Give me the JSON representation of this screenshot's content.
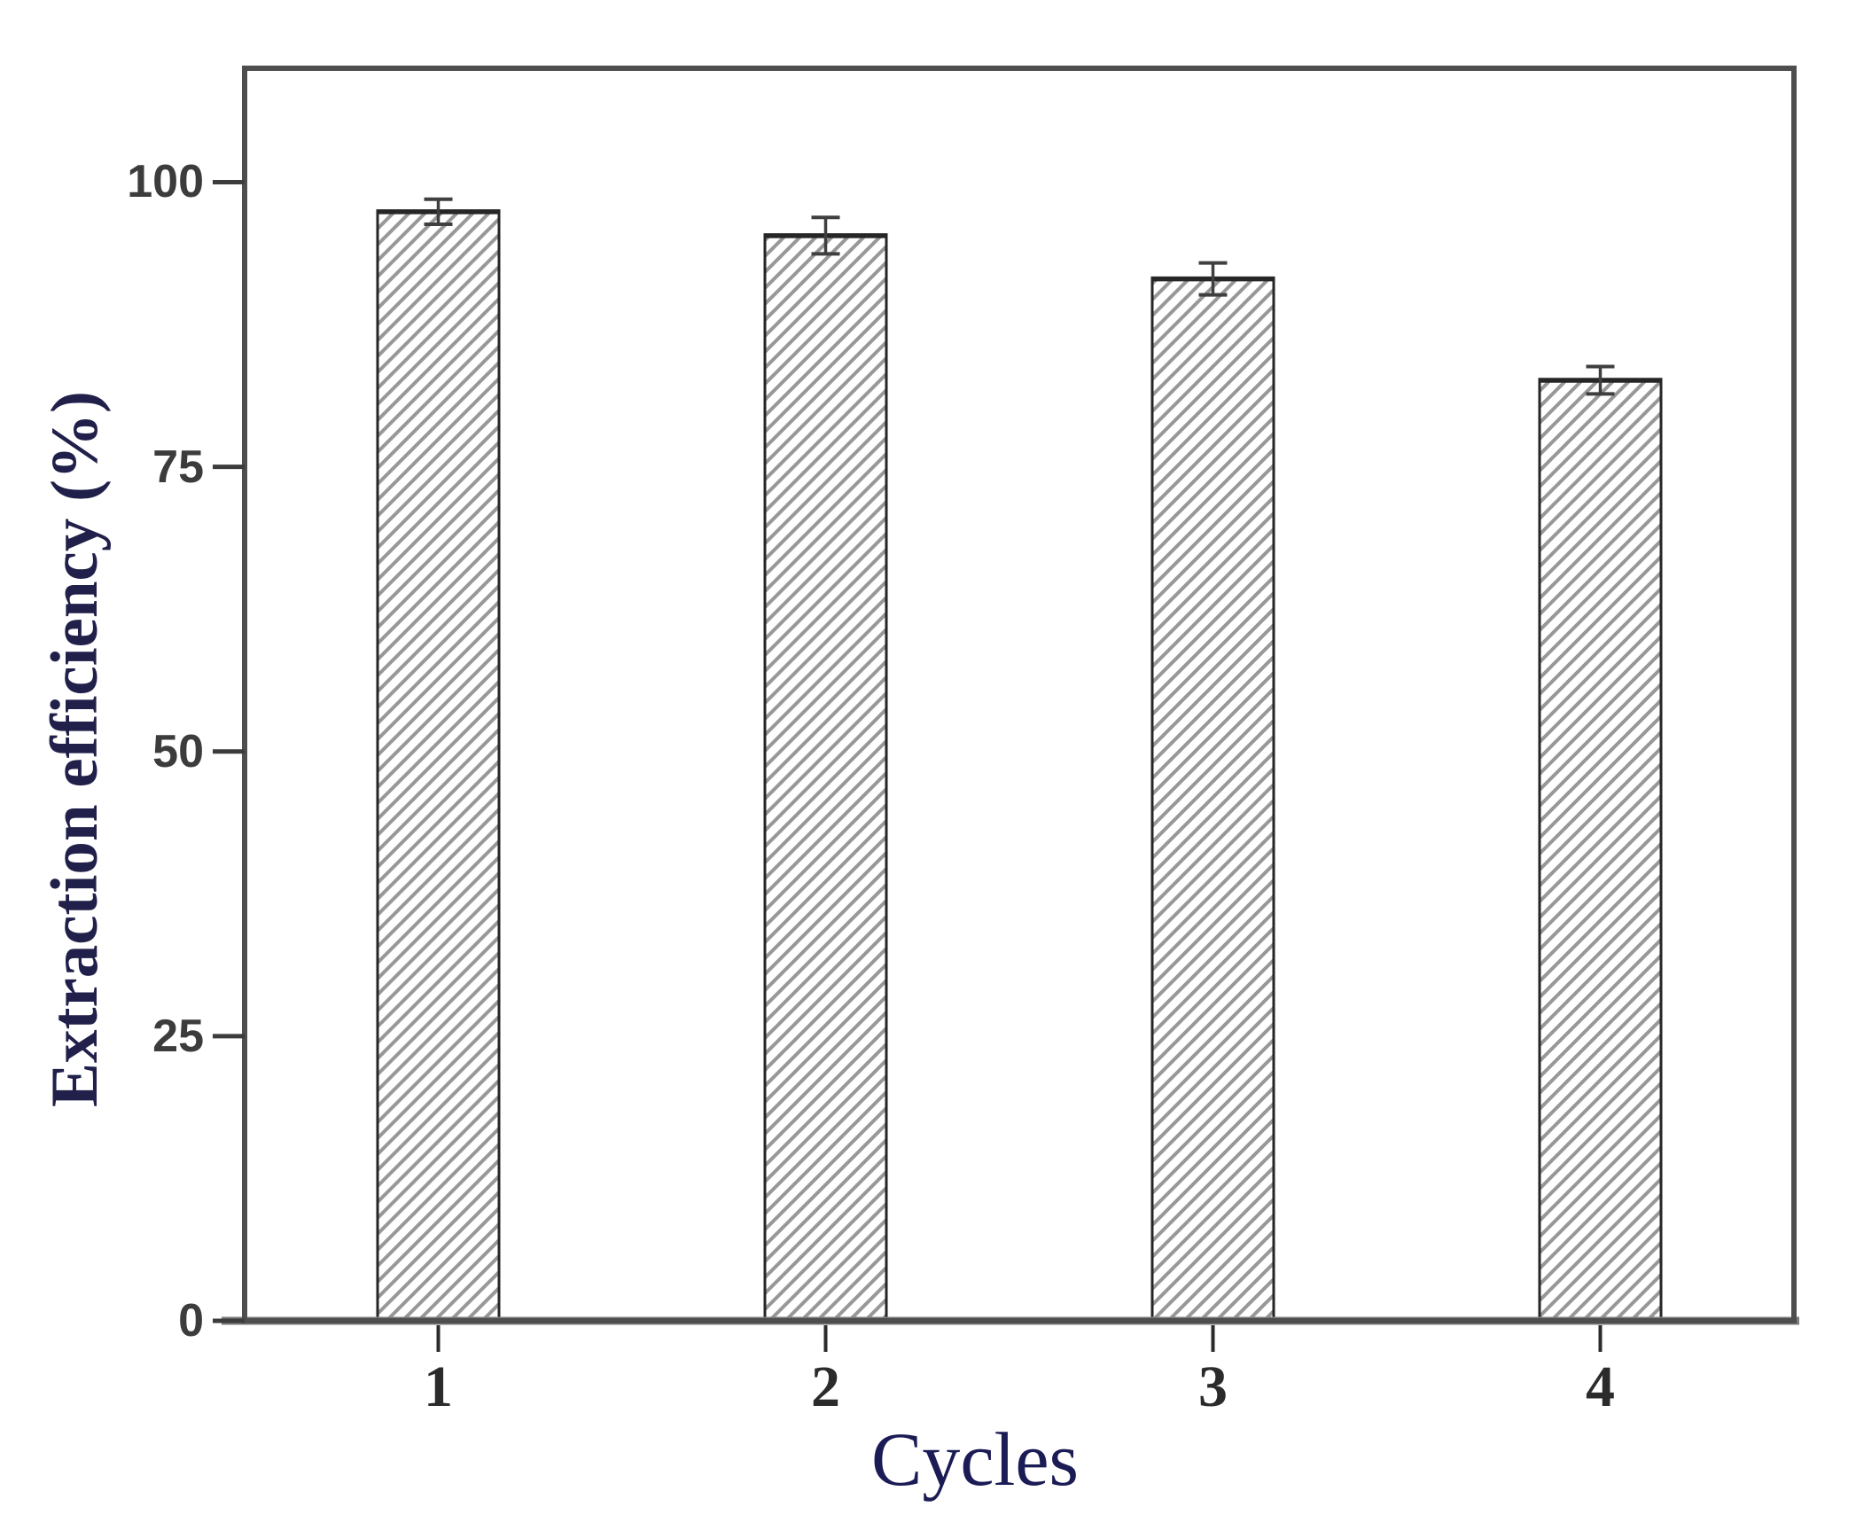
{
  "chart_data": {
    "type": "bar",
    "title": "",
    "categories": [
      "1",
      "2",
      "3",
      "4"
    ],
    "values": [
      97.4,
      95.3,
      91.5,
      82.6
    ],
    "errors": [
      1.1,
      1.6,
      1.4,
      1.2
    ],
    "xlabel": "Cycles",
    "ylabel": "Extraction efficiency (%)",
    "ylim": [
      0,
      110
    ],
    "yticks": [
      0,
      25,
      50,
      75,
      100
    ],
    "grid": false,
    "legend": "none",
    "bar_width_fraction": 0.31,
    "style": {
      "background": "#ffffff",
      "bar_fill": "#ffffff",
      "hatch": "forward-diagonal",
      "hatch_color": "#989898",
      "bar_border_color": "#262626",
      "error_bar_color": "#3f3f3f",
      "frame_color": "#4e4e4e",
      "baseline_color": "#7b7b7b",
      "y_tick_label_color": "#3c3c3c",
      "x_tick_label_color": "#2b2b2b",
      "y_axis_title_color": "#20204a",
      "x_axis_title_color": "#1b1b55"
    }
  }
}
